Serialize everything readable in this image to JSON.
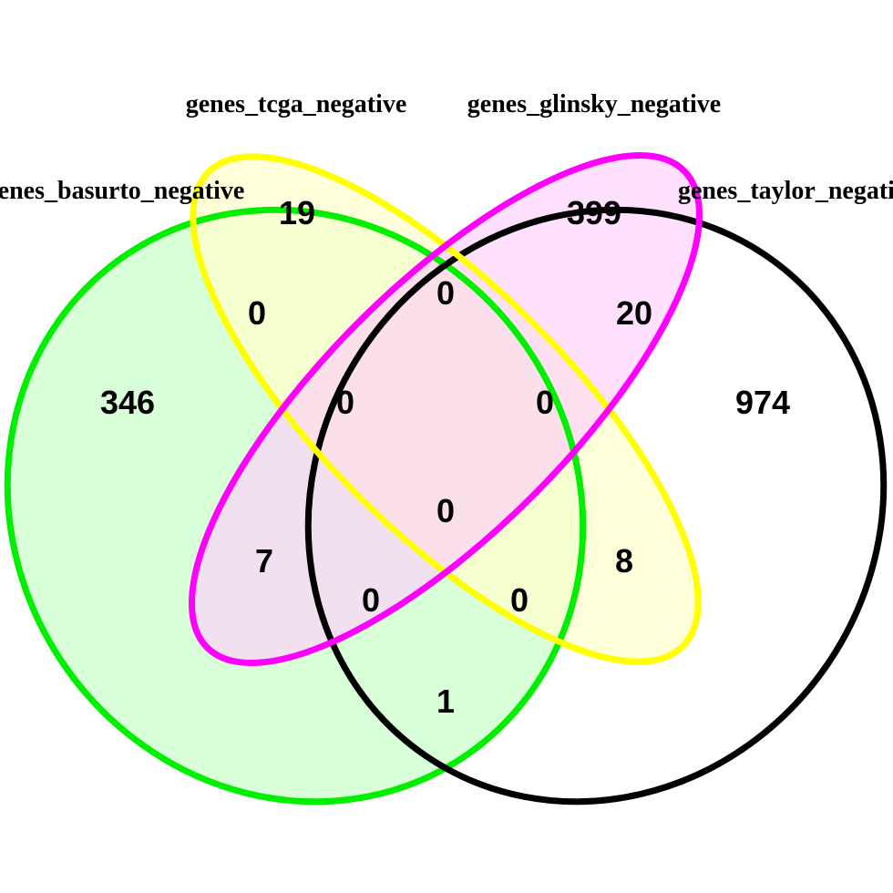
{
  "sets": [
    {
      "id": "basurto",
      "label": "genes_basurto_negative",
      "stroke": "#00ee00",
      "fill": "#ccffcc"
    },
    {
      "id": "tcga",
      "label": "genes_tcga_negative",
      "stroke": "#ffff00",
      "fill": "#ffffcc"
    },
    {
      "id": "glinsky",
      "label": "genes_glinsky_negative",
      "stroke": "#ff00ff",
      "fill": "#ffccff"
    },
    {
      "id": "taylor",
      "label": "genes_taylor_negative",
      "stroke": "#000000",
      "fill": "none"
    }
  ],
  "regions": {
    "basurto_only": "346",
    "tcga_only": "19",
    "glinsky_only": "399",
    "taylor_only": "974",
    "basurto_tcga": "0",
    "tcga_glinsky": "0",
    "glinsky_taylor": "20",
    "basurto_glinsky": "7",
    "tcga_taylor": "8",
    "basurto_taylor": "1",
    "basurto_tcga_glinsky": "0",
    "tcga_glinsky_taylor": "0",
    "basurto_glinsky_taylor": "0",
    "basurto_tcga_taylor": "0",
    "all_four": "0"
  }
}
